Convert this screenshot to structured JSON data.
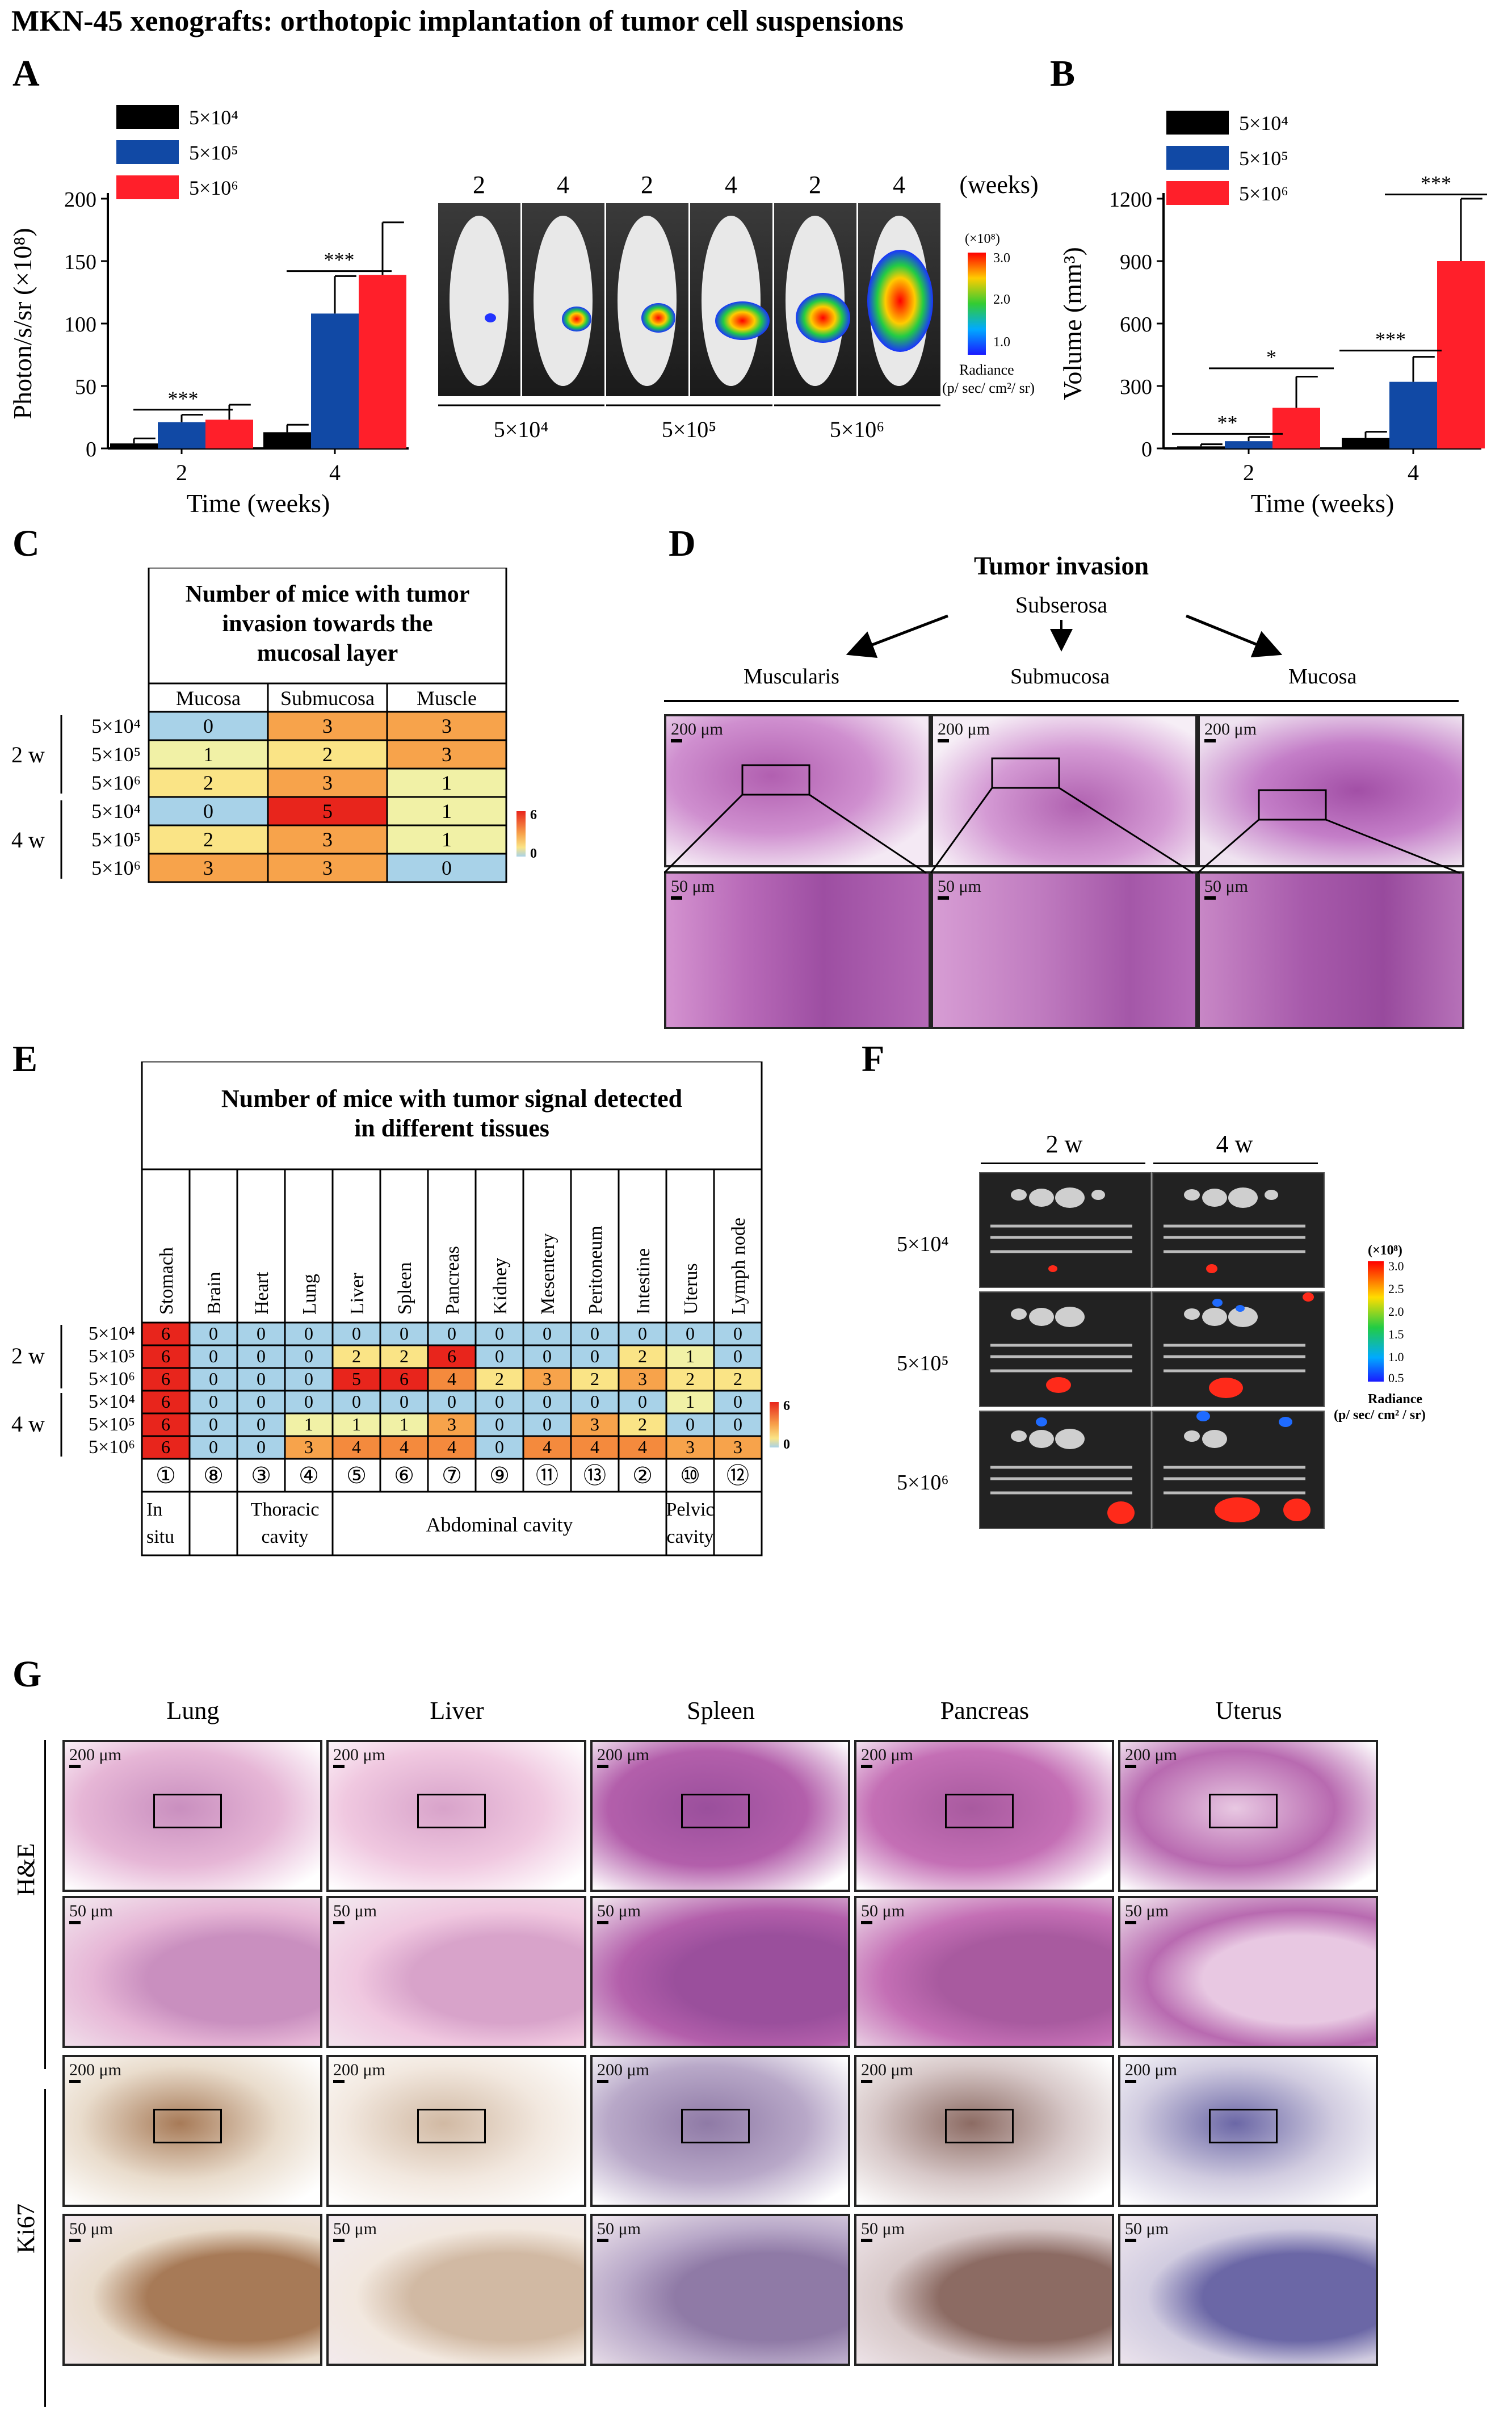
{
  "title": "MKN-45 xenografts: orthotopic implantation of tumor cell suspensions",
  "panels": {
    "A": "A",
    "B": "B",
    "C": "C",
    "D": "D",
    "E": "E",
    "F": "F",
    "G": "G"
  },
  "legend": [
    "5×10⁴",
    "5×10⁵",
    "5×10⁶"
  ],
  "colors": {
    "s1": "#000000",
    "s2": "#1149A5",
    "s3": "#FF1F2A",
    "blue_cell": "#A8D2E8",
    "pale": "#F1F1A6",
    "yellow": "#FAE486",
    "orange": "#F7A34B",
    "orange2": "#F48A3D",
    "red": "#E8251C",
    "sage": "#D5DDB0"
  },
  "chart_data": [
    {
      "type": "bar",
      "title": "",
      "xlabel": "Time (weeks)",
      "ylabel": "Photon/s/sr  (×10⁸)",
      "categories": [
        "2",
        "4"
      ],
      "ylim": [
        0,
        200
      ],
      "yticks": [
        "0",
        "50",
        "100",
        "150",
        "200"
      ],
      "series": [
        {
          "name": "5×10⁴",
          "values": [
            4,
            13
          ],
          "errors": [
            4,
            6
          ]
        },
        {
          "name": "5×10⁵",
          "values": [
            21,
            108
          ],
          "errors": [
            6,
            30
          ]
        },
        {
          "name": "5×10⁶",
          "values": [
            23,
            139
          ],
          "errors": [
            12,
            42
          ]
        }
      ],
      "annotations": [
        "***",
        "***"
      ]
    },
    {
      "type": "bar",
      "title": "",
      "xlabel": "Time (weeks)",
      "ylabel": "Volume  (mm³)",
      "categories": [
        "2",
        "4"
      ],
      "ylim": [
        0,
        1200
      ],
      "yticks": [
        "0",
        "300",
        "600",
        "900",
        "1200"
      ],
      "series": [
        {
          "name": "5×10⁴",
          "values": [
            10,
            50
          ],
          "errors": [
            10,
            30
          ]
        },
        {
          "name": "5×10⁵",
          "values": [
            35,
            320
          ],
          "errors": [
            20,
            120
          ]
        },
        {
          "name": "5×10⁶",
          "values": [
            195,
            900
          ],
          "errors": [
            150,
            300
          ]
        }
      ],
      "annotations": [
        "**",
        "*",
        "***",
        "***"
      ]
    }
  ],
  "panelA_images": {
    "weeks_header": [
      "2",
      "4",
      "2",
      "4",
      "2",
      "4"
    ],
    "weeks_unit": "(weeks)",
    "groups": [
      "5×10⁴",
      "5×10⁵",
      "5×10⁶"
    ],
    "colorbar_unit": "(×10⁸)",
    "colorbar_ticks": [
      "3.0",
      "2.0",
      "1.0"
    ],
    "colorbar_label1": "Radiance",
    "colorbar_label2": "(p/ sec/ cm²/ sr)"
  },
  "tableC": {
    "header": "Number of mice with tumor invasion towards the mucosal layer",
    "header_lines": [
      "Number of mice with tumor",
      "invasion towards the",
      "mucosal layer"
    ],
    "columns": [
      "Mucosa",
      "Submucosa",
      "Muscle"
    ],
    "groups": [
      "2 w",
      "4 w"
    ],
    "row_labels": [
      "5×10⁴",
      "5×10⁵",
      "5×10⁶",
      "5×10⁴",
      "5×10⁵",
      "5×10⁶"
    ],
    "rows": [
      [
        "0",
        "3",
        "3"
      ],
      [
        "1",
        "2",
        "3"
      ],
      [
        "2",
        "3",
        "1"
      ],
      [
        "0",
        "5",
        "1"
      ],
      [
        "2",
        "3",
        "1"
      ],
      [
        "3",
        "3",
        "0"
      ]
    ],
    "scale_max": "6",
    "scale_min": "0"
  },
  "panelD": {
    "title": "Tumor invasion",
    "subserosa": "Subserosa",
    "labels": [
      "Muscularis",
      "Submucosa",
      "Mucosa"
    ],
    "scale_top": [
      "200 μm",
      "200 μm",
      "200 μm"
    ],
    "scale_bottom": [
      "50 μm",
      "50 μm",
      "50 μm"
    ]
  },
  "tableE": {
    "header_lines": [
      "Number of mice with tumor signal detected",
      "in different tissues"
    ],
    "columns": [
      "Stomach",
      "Brain",
      "Heart",
      "Lung",
      "Liver",
      "Spleen",
      "Pancreas",
      "Kidney",
      "Mesentery",
      "Peritoneum",
      "Intestine",
      "Uterus",
      "Lymph node"
    ],
    "groups": [
      "2 w",
      "4 w"
    ],
    "row_labels": [
      "5×10⁴",
      "5×10⁵",
      "5×10⁶",
      "5×10⁴",
      "5×10⁵",
      "5×10⁶"
    ],
    "rows": [
      [
        "6",
        "0",
        "0",
        "0",
        "0",
        "0",
        "0",
        "0",
        "0",
        "0",
        "0",
        "0",
        "0"
      ],
      [
        "6",
        "0",
        "0",
        "0",
        "2",
        "2",
        "6",
        "0",
        "0",
        "0",
        "2",
        "1",
        "0"
      ],
      [
        "6",
        "0",
        "0",
        "0",
        "5",
        "6",
        "4",
        "2",
        "3",
        "2",
        "3",
        "2",
        "2"
      ],
      [
        "6",
        "0",
        "0",
        "0",
        "0",
        "0",
        "0",
        "0",
        "0",
        "0",
        "0",
        "1",
        "0"
      ],
      [
        "6",
        "0",
        "0",
        "1",
        "1",
        "1",
        "3",
        "0",
        "0",
        "3",
        "2",
        "0",
        "0"
      ],
      [
        "6",
        "0",
        "0",
        "3",
        "4",
        "4",
        "4",
        "0",
        "4",
        "4",
        "4",
        "3",
        "3"
      ]
    ],
    "circled": [
      "①",
      "⑧",
      "③",
      "④",
      "⑤",
      "⑥",
      "⑦",
      "⑨",
      "⑪",
      "⑬",
      "②",
      "⑩",
      "⑫"
    ],
    "region_in_situ": [
      "In",
      "situ"
    ],
    "region_thoracic": [
      "Thoracic",
      "cavity"
    ],
    "region_abdominal": "Abdominal cavity",
    "region_pelvic": [
      "Pelvic",
      "cavity"
    ],
    "scale_max": "6",
    "scale_min": "0"
  },
  "panelF": {
    "cols": [
      "2 w",
      "4 w"
    ],
    "rows": [
      "5×10⁴",
      "5×10⁵",
      "5×10⁶"
    ],
    "colorbar_unit": "(×10⁸)",
    "colorbar_ticks": [
      "3.0",
      "2.5",
      "2.0",
      "1.5",
      "1.0",
      "0.5"
    ],
    "colorbar_label1": "Radiance",
    "colorbar_label2": "(p/ sec/ cm² / sr)"
  },
  "panelG": {
    "columns": [
      "Lung",
      "Liver",
      "Spleen",
      "Pancreas",
      "Uterus"
    ],
    "rows": [
      "H&E",
      "Ki67"
    ],
    "scale_top": "200 μm",
    "scale_bottom": "50 μm"
  }
}
